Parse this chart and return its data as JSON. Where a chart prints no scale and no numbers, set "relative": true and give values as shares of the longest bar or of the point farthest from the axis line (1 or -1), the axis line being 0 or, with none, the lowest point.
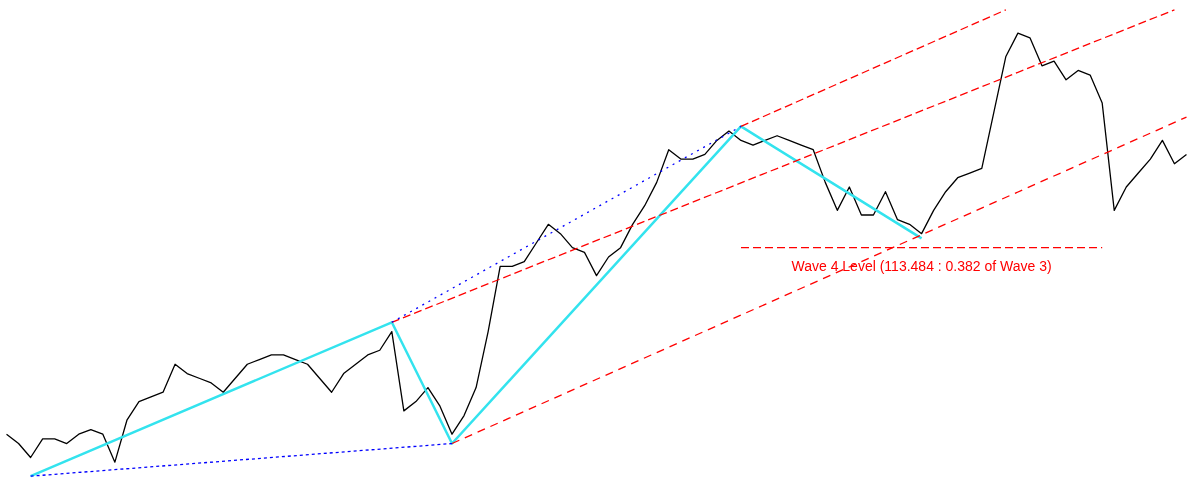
{
  "chart_data": {
    "type": "line",
    "relative": true,
    "grid": false,
    "categories": [
      null,
      null,
      null,
      null,
      null,
      null,
      null,
      null,
      null,
      null,
      null,
      null,
      null,
      null,
      null,
      null,
      null,
      null,
      null,
      null,
      null,
      null,
      null,
      null,
      null,
      null,
      null,
      null,
      null,
      null,
      null,
      null,
      null,
      null,
      null,
      null,
      null,
      null,
      null,
      null,
      null,
      null,
      null,
      null,
      null,
      null,
      null,
      null,
      null,
      null,
      null,
      null,
      null,
      null,
      null,
      null,
      null,
      null,
      null,
      null,
      null,
      null,
      null,
      null,
      null,
      null,
      null,
      null,
      null,
      null,
      null,
      null,
      null,
      null,
      null,
      null,
      null,
      null,
      null,
      null,
      null,
      null,
      null,
      null,
      null,
      null,
      null,
      null,
      null,
      null,
      null,
      null,
      null,
      null,
      null,
      null,
      null,
      null,
      null
    ],
    "series": [
      {
        "color": "#000000",
        "line_style": "solid",
        "values": [
          0.09,
          0.07,
          0.04,
          0.08,
          0.08,
          0.07,
          0.09,
          0.1,
          0.09,
          0.03,
          0.12,
          0.16,
          0.17,
          0.18,
          0.24,
          0.22,
          0.21,
          0.2,
          0.18,
          0.21,
          0.24,
          0.25,
          0.26,
          0.26,
          0.25,
          0.24,
          0.21,
          0.18,
          0.22,
          0.24,
          0.26,
          0.27,
          0.31,
          0.14,
          0.16,
          0.19,
          0.15,
          0.09,
          0.13,
          0.19,
          0.31,
          0.45,
          0.45,
          0.46,
          0.5,
          0.54,
          0.52,
          0.49,
          0.48,
          0.43,
          0.47,
          0.49,
          0.54,
          0.58,
          0.63,
          0.7,
          0.68,
          0.68,
          0.69,
          0.72,
          0.74,
          0.72,
          0.71,
          0.72,
          0.73,
          0.72,
          0.71,
          0.7,
          0.63,
          0.57,
          0.62,
          0.56,
          0.56,
          0.61,
          0.55,
          0.54,
          0.52,
          0.57,
          0.61,
          0.64,
          0.65,
          0.66,
          0.78,
          0.9,
          0.95,
          0.94,
          0.88,
          0.89,
          0.85,
          0.87,
          0.86,
          0.8,
          0.57,
          0.62,
          0.65,
          0.68,
          0.72,
          0.67,
          0.69
        ]
      },
      {
        "color": "#0000ff",
        "line_style": "dotted",
        "values": [
          null,
          null,
          0,
          null,
          null,
          null,
          null,
          null,
          null,
          null,
          null,
          null,
          null,
          null,
          null,
          null,
          null,
          null,
          null,
          null,
          null,
          null,
          null,
          null,
          null,
          null,
          null,
          null,
          null,
          null,
          null,
          null,
          null,
          null,
          null,
          null,
          null,
          0.07,
          null,
          null,
          null,
          null,
          null,
          null,
          null,
          null,
          null,
          null,
          null,
          null,
          null,
          null,
          null,
          null,
          null,
          null,
          null,
          null,
          null,
          null,
          null,
          null,
          null,
          null,
          null,
          null,
          null,
          null,
          null,
          null,
          null,
          null,
          null,
          null,
          null,
          null,
          null,
          null,
          null,
          null,
          null,
          null,
          null,
          null,
          null,
          null,
          null,
          null,
          null,
          null,
          null,
          null,
          null,
          null,
          null,
          null,
          null,
          null,
          null
        ]
      },
      {
        "color": "#0000ff",
        "line_style": "dotted",
        "values": [
          null,
          null,
          null,
          null,
          null,
          null,
          null,
          null,
          null,
          null,
          null,
          null,
          null,
          null,
          null,
          null,
          null,
          null,
          null,
          null,
          null,
          null,
          null,
          null,
          null,
          null,
          null,
          null,
          null,
          null,
          null,
          null,
          0.33,
          null,
          null,
          null,
          null,
          null,
          null,
          null,
          null,
          null,
          null,
          null,
          null,
          null,
          null,
          null,
          null,
          null,
          null,
          null,
          null,
          null,
          null,
          null,
          null,
          null,
          null,
          null,
          null,
          0.75,
          null,
          null,
          null,
          null,
          null,
          null,
          null,
          null,
          null,
          null,
          null,
          null,
          null,
          null,
          null,
          null,
          null,
          null,
          null,
          null,
          null,
          null,
          null,
          null,
          null,
          null,
          null,
          null,
          null,
          null,
          null,
          null,
          null,
          null,
          null,
          null,
          null
        ]
      },
      {
        "color": "#ff0000",
        "line_style": "dashed",
        "values": [
          null,
          null,
          null,
          null,
          null,
          null,
          null,
          null,
          null,
          null,
          null,
          null,
          null,
          null,
          null,
          null,
          null,
          null,
          null,
          null,
          null,
          null,
          null,
          null,
          null,
          null,
          null,
          null,
          null,
          null,
          null,
          null,
          null,
          null,
          null,
          null,
          null,
          null,
          null,
          null,
          null,
          null,
          null,
          null,
          null,
          null,
          null,
          null,
          null,
          null,
          null,
          null,
          null,
          null,
          null,
          null,
          null,
          null,
          null,
          null,
          null,
          0.75,
          null,
          null,
          null,
          null,
          null,
          null,
          null,
          null,
          null,
          null,
          null,
          null,
          null,
          null,
          null,
          null,
          null,
          null,
          null,
          null,
          null,
          1.0,
          null,
          null,
          null,
          null,
          null,
          null,
          null,
          null,
          null,
          null,
          null,
          null,
          null,
          null,
          null
        ]
      },
      {
        "color": "#ff0000",
        "line_style": "dashed",
        "values": [
          null,
          null,
          null,
          null,
          null,
          null,
          null,
          null,
          null,
          null,
          null,
          null,
          null,
          null,
          null,
          null,
          null,
          null,
          null,
          null,
          null,
          null,
          null,
          null,
          null,
          null,
          null,
          null,
          null,
          null,
          null,
          null,
          0.33,
          null,
          null,
          null,
          null,
          null,
          null,
          null,
          null,
          null,
          null,
          null,
          null,
          null,
          null,
          null,
          null,
          null,
          null,
          null,
          null,
          null,
          null,
          null,
          null,
          null,
          null,
          null,
          null,
          null,
          null,
          null,
          null,
          null,
          null,
          null,
          null,
          null,
          null,
          null,
          null,
          null,
          null,
          null,
          null,
          null,
          null,
          null,
          null,
          null,
          null,
          null,
          null,
          null,
          null,
          null,
          null,
          null,
          null,
          null,
          null,
          null,
          null,
          null,
          null,
          1.0,
          null
        ]
      },
      {
        "color": "#ff0000",
        "line_style": "dashed",
        "values": [
          null,
          null,
          null,
          null,
          null,
          null,
          null,
          null,
          null,
          null,
          null,
          null,
          null,
          null,
          null,
          null,
          null,
          null,
          null,
          null,
          null,
          null,
          null,
          null,
          null,
          null,
          null,
          null,
          null,
          null,
          null,
          null,
          null,
          null,
          null,
          null,
          null,
          0.07,
          null,
          null,
          null,
          null,
          null,
          null,
          null,
          null,
          null,
          null,
          null,
          null,
          null,
          null,
          null,
          null,
          null,
          null,
          null,
          null,
          null,
          null,
          null,
          null,
          null,
          null,
          null,
          null,
          null,
          null,
          null,
          null,
          null,
          null,
          null,
          null,
          null,
          null,
          null,
          null,
          null,
          null,
          null,
          null,
          null,
          null,
          null,
          null,
          null,
          null,
          null,
          null,
          null,
          null,
          null,
          null,
          null,
          null,
          null,
          null,
          0.77
        ]
      },
      {
        "color": "#ff0000",
        "line_style": "dashed",
        "values": [
          null,
          null,
          null,
          null,
          null,
          null,
          null,
          null,
          null,
          null,
          null,
          null,
          null,
          null,
          null,
          null,
          null,
          null,
          null,
          null,
          null,
          null,
          null,
          null,
          null,
          null,
          null,
          null,
          null,
          null,
          null,
          null,
          null,
          null,
          null,
          null,
          null,
          null,
          null,
          null,
          null,
          null,
          null,
          null,
          null,
          null,
          null,
          null,
          null,
          null,
          null,
          null,
          null,
          null,
          null,
          null,
          null,
          null,
          null,
          null,
          null,
          0.49,
          null,
          null,
          null,
          null,
          null,
          null,
          null,
          null,
          null,
          null,
          null,
          null,
          null,
          null,
          null,
          null,
          null,
          null,
          null,
          null,
          null,
          null,
          null,
          null,
          null,
          null,
          null,
          null,
          null,
          0.49,
          null,
          null,
          null,
          null,
          null,
          null,
          null
        ]
      },
      {
        "color": "#33e3ee",
        "line_style": "solid",
        "values": [
          null,
          null,
          0,
          null,
          null,
          null,
          null,
          null,
          null,
          null,
          null,
          null,
          null,
          null,
          null,
          null,
          null,
          null,
          null,
          null,
          null,
          null,
          null,
          null,
          null,
          null,
          null,
          null,
          null,
          null,
          null,
          null,
          0.33,
          null,
          null,
          null,
          null,
          0.07,
          null,
          null,
          null,
          null,
          null,
          null,
          null,
          null,
          null,
          null,
          null,
          null,
          null,
          null,
          null,
          null,
          null,
          null,
          null,
          null,
          null,
          null,
          null,
          0.75,
          null,
          null,
          null,
          null,
          null,
          null,
          null,
          null,
          null,
          null,
          null,
          null,
          null,
          null,
          0.51,
          null,
          null,
          null,
          null,
          null,
          null,
          null,
          null,
          null,
          null,
          null,
          null,
          null,
          null,
          null,
          null,
          null,
          null,
          null,
          null,
          null,
          null
        ]
      }
    ],
    "annotations": [
      "Wave 4 Level (113.484 : 0.382 of Wave 3)"
    ]
  }
}
